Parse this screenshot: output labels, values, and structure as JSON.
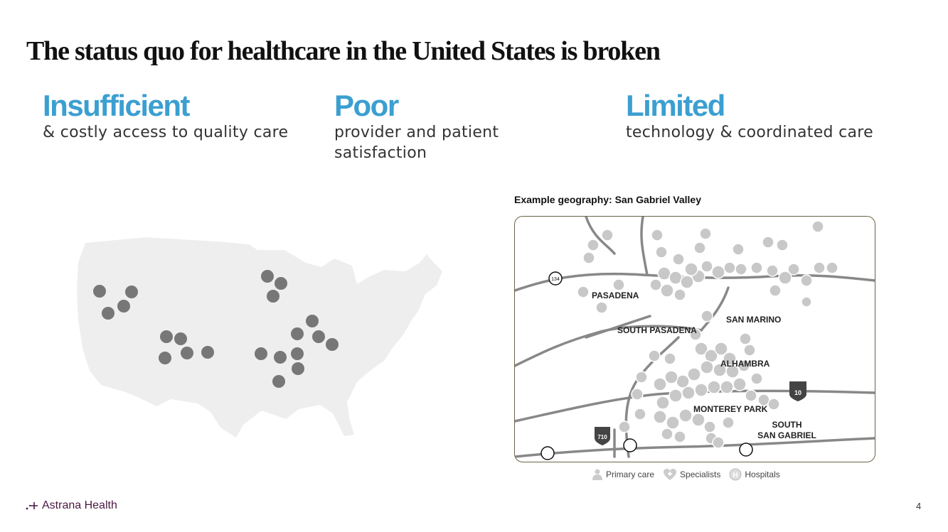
{
  "title": "The status quo for healthcare in the United States is broken",
  "columns": [
    {
      "heading": "Insufficient",
      "text": "& costly access to quality care"
    },
    {
      "heading": "Poor",
      "text_line1": "provider and patient",
      "text_line2": "satisfaction"
    },
    {
      "heading": "Limited",
      "text": "technology & coordinated care"
    }
  ],
  "map_caption": "Example geography: San Gabriel Valley",
  "places": {
    "pasadena": "PASADENA",
    "south_pasadena": "SOUTH PASADENA",
    "san_marino": "SAN MARINO",
    "alhambra": "ALHAMBRA",
    "monterey_park": "MONTEREY PARK",
    "south_san_gabriel_1": "SOUTH",
    "south_san_gabriel_2": "SAN GABRIEL"
  },
  "route_shields": {
    "r134": "134",
    "i710": "710",
    "i10": "10"
  },
  "legend": {
    "primary_care": "Primary care",
    "specialists": "Specialists",
    "hospitals": "Hospitals"
  },
  "icons": {
    "primary_care": "person-icon",
    "specialists": "heart-plus-icon",
    "hospitals": "h-circle-icon"
  },
  "colors": {
    "accent": "#3b9fd1",
    "brand": "#4a1942",
    "dot": "#7a7a7a",
    "map": "#eeeeee"
  },
  "brand_name": "Astrana Health",
  "page_number": "4"
}
